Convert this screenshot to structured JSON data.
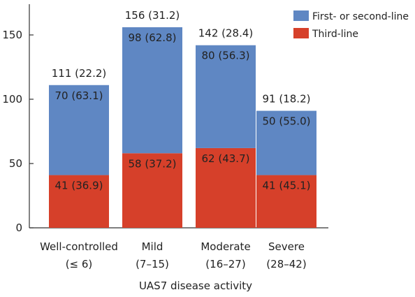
{
  "chart_data": {
    "type": "bar",
    "stacked": true,
    "title": "",
    "xlabel": "UAS7 disease activity",
    "ylabel": "",
    "ylim": [
      0,
      170
    ],
    "yticks": [
      0,
      50,
      100,
      150
    ],
    "categories": [
      {
        "line1": "Well-controlled",
        "line2": "(≤ 6)"
      },
      {
        "line1": "Mild",
        "line2": "(7–15)"
      },
      {
        "line1": "Moderate",
        "line2": "(16–27)"
      },
      {
        "line1": "Severe",
        "line2": "(28–42)"
      }
    ],
    "series": [
      {
        "name": "Third-line",
        "color": "#d6402a",
        "values": [
          41,
          58,
          62,
          41
        ],
        "labels": [
          "41 (36.9)",
          "58 (37.2)",
          "62 (43.7)",
          "41 (45.1)"
        ]
      },
      {
        "name": "First- or second-line",
        "color": "#5f87c3",
        "values": [
          70,
          98,
          80,
          50
        ],
        "labels": [
          "70 (63.1)",
          "98 (62.8)",
          "80 (56.3)",
          "50 (55.0)"
        ]
      }
    ],
    "totals": [
      111,
      156,
      142,
      91
    ],
    "total_labels": [
      "111 (22.2)",
      "156 (31.2)",
      "142 (28.4)",
      "91 (18.2)"
    ],
    "legend": {
      "position": "top-right",
      "entries": [
        "First- or second-line",
        "Third-line"
      ]
    },
    "grid": false
  }
}
